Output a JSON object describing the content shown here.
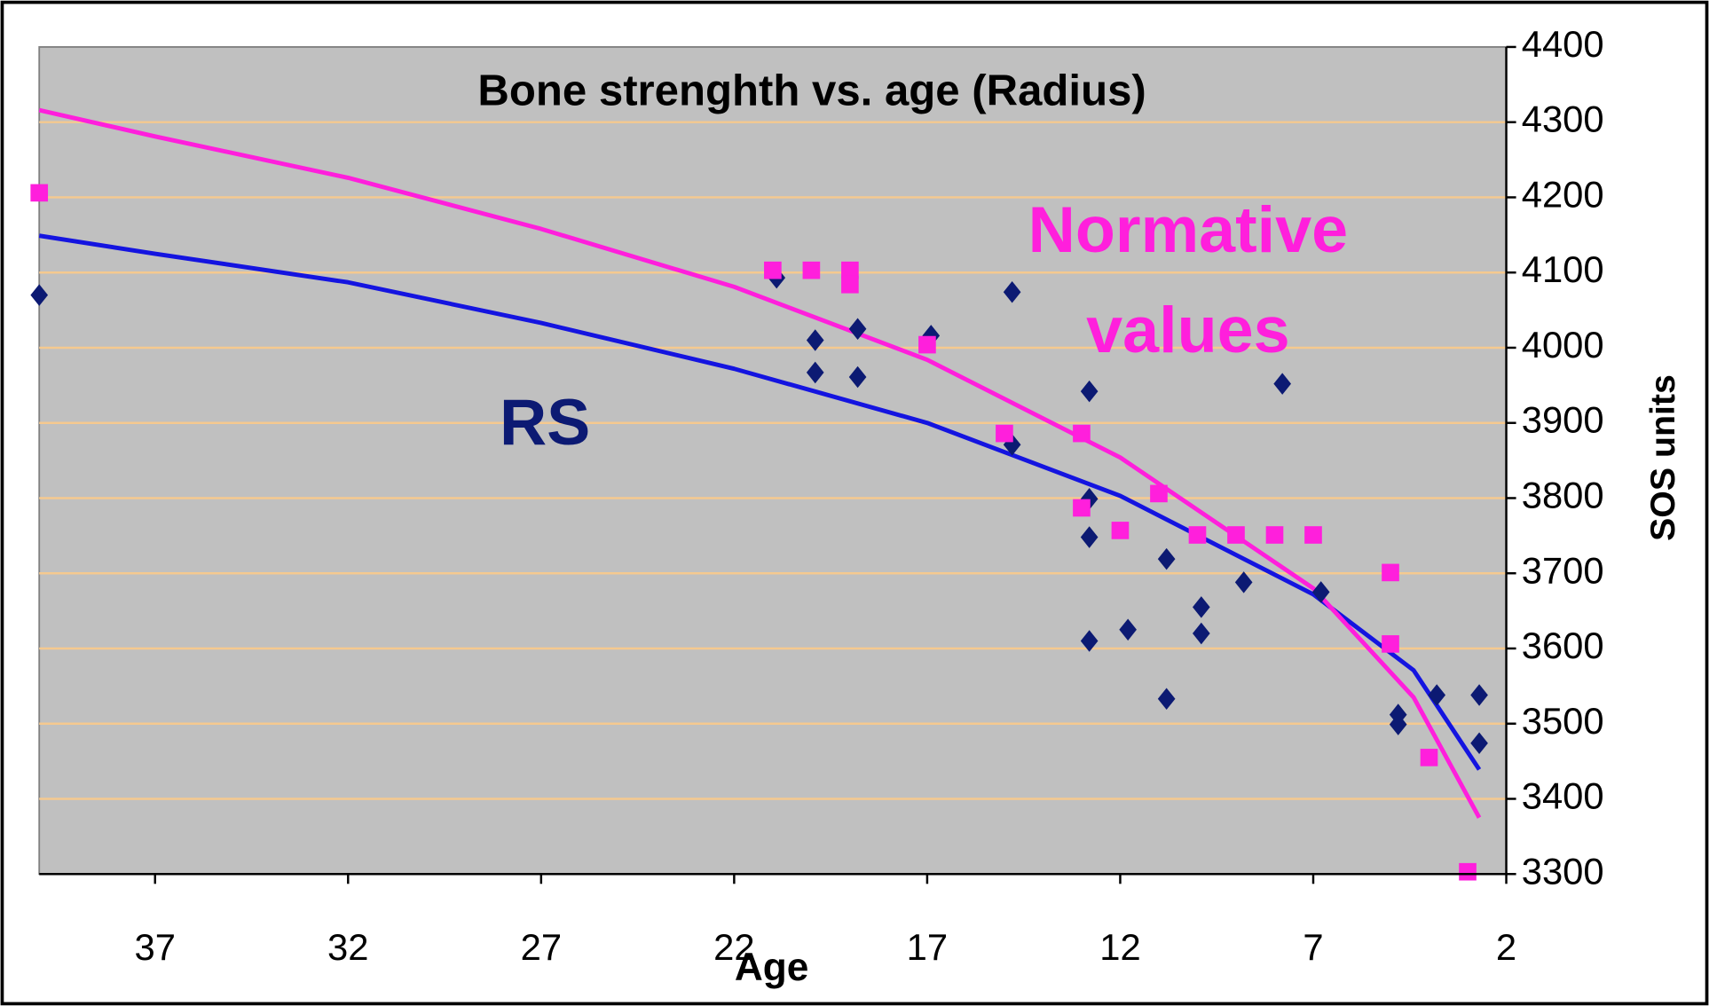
{
  "chart_data": {
    "type": "scatter",
    "title": "Bone strenghth vs. age (Radius)",
    "x_label": "Age",
    "y_label": "SOS units",
    "xlim": [
      40,
      2
    ],
    "xticks": [
      37,
      32,
      27,
      22,
      17,
      12,
      7,
      2
    ],
    "ylim": [
      3300,
      4400
    ],
    "yticks": [
      3300,
      3400,
      3500,
      3600,
      3700,
      3800,
      3900,
      4000,
      4100,
      4200,
      4300,
      4400
    ],
    "grid": true,
    "series": [
      {
        "name": "RS",
        "color": "#0c1a73",
        "marker": "diamond",
        "x": [
          40,
          20.9,
          19.9,
          19.9,
          18.8,
          18.8,
          16.9,
          14.8,
          14.8,
          12.8,
          12.8,
          12.8,
          12.8,
          11.8,
          10.8,
          10.8,
          9.9,
          9.9,
          8.8,
          7.8,
          6.8,
          4.8,
          4.8,
          3.8,
          2.7,
          2.7
        ],
        "values": [
          4070,
          4093,
          4010,
          3967,
          4025,
          3961,
          4016,
          4074,
          3871,
          3942,
          3799,
          3748,
          3610,
          3625,
          3719,
          3533,
          3655,
          3620,
          3688,
          3952,
          3675,
          3512,
          3499,
          3538,
          3538,
          3474
        ]
      },
      {
        "name": "Normative values",
        "color": "#ff1fdc",
        "marker": "square",
        "x": [
          40,
          21,
          20,
          19,
          19,
          17,
          15,
          13,
          13,
          12,
          11,
          10,
          9,
          8,
          7,
          5,
          5,
          4,
          3
        ],
        "values": [
          4206,
          4103,
          4103,
          4103,
          4084,
          4004,
          3886,
          3886,
          3787,
          3757,
          3806,
          3751,
          3751,
          3751,
          3751,
          3701,
          3606,
          3455,
          3303
        ]
      }
    ],
    "trendlines": [
      {
        "color": "#1414e0",
        "x": [
          40,
          37,
          32,
          27,
          22,
          17,
          12,
          7,
          4.4,
          2.7
        ],
        "values": [
          4149,
          4125,
          4087,
          4033,
          3972,
          3900,
          3803,
          3672,
          3571,
          3439
        ]
      },
      {
        "color": "#ff1fdc",
        "x": [
          40,
          37,
          32,
          27,
          22,
          17,
          12,
          7,
          4.4,
          2.7
        ],
        "values": [
          4316,
          4281,
          4226,
          4158,
          4081,
          3984,
          3854,
          3680,
          3535,
          3375
        ]
      }
    ]
  }
}
